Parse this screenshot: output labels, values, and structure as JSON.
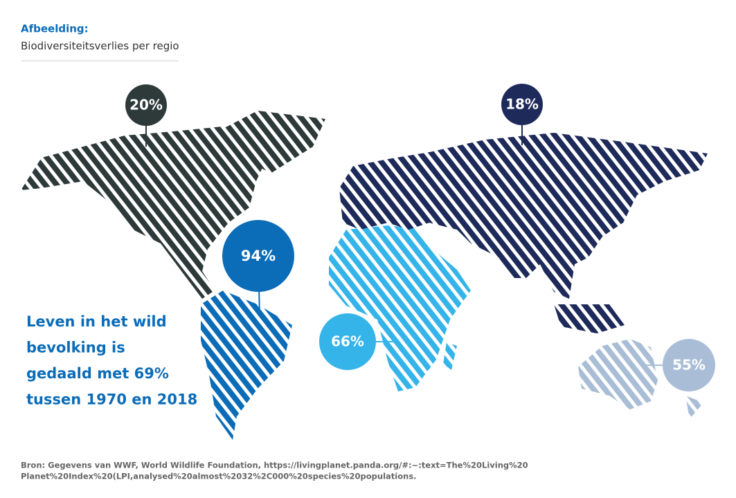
{
  "header": {
    "label": "Afbeelding:",
    "title": "Biodiversiteitsverlies per regio"
  },
  "regions": [
    {
      "label": "20%",
      "color": "#2e3a3a"
    },
    {
      "label": "94%",
      "color": "#0b6cb8"
    },
    {
      "label": "66%",
      "color": "#35b4ea"
    },
    {
      "label": "18%",
      "color": "#1e2a5a"
    },
    {
      "label": "55%",
      "color": "#a9bed6"
    }
  ],
  "headline": [
    "Leven in het wild",
    "bevolking is",
    "gedaald met 69%",
    "tussen 1970 en 2018"
  ],
  "source": [
    "Bron: Gegevens van WWF, World Wildlife Foundation, https://livingplanet.panda.org/#:~:text=The%20Living%20",
    "Planet%20Index%20(LPI,analysed%20almost%2032%2C000%20species%20populations."
  ]
}
